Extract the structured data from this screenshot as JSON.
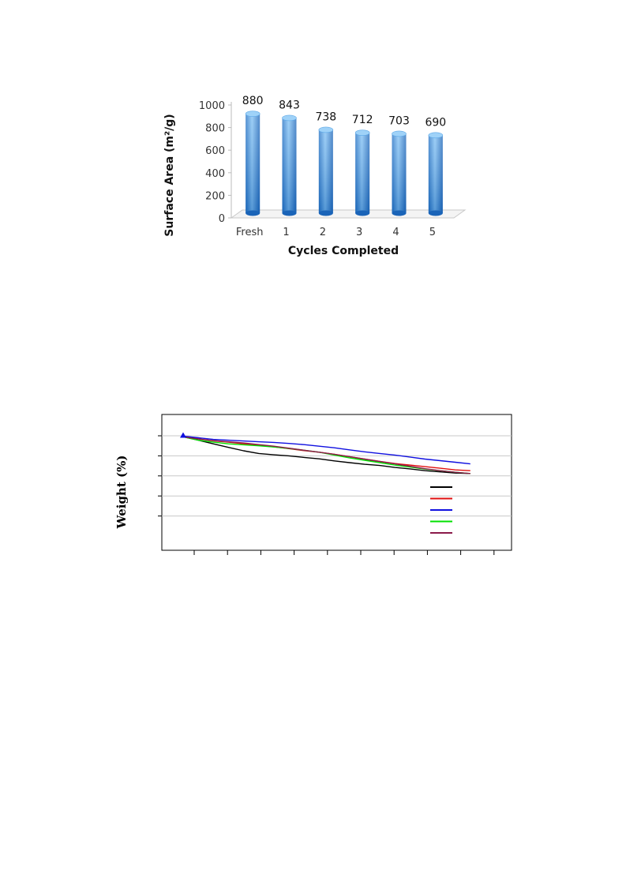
{
  "chart_data": [
    {
      "type": "bar",
      "categories": [
        "Fresh",
        "1",
        "2",
        "3",
        "4",
        "5"
      ],
      "values": [
        880,
        843,
        738,
        712,
        703,
        690
      ],
      "data_labels": [
        "880",
        "843",
        "738",
        "712",
        "703",
        "690"
      ],
      "yticks": [
        "0",
        "200",
        "400",
        "600",
        "800",
        "1000"
      ],
      "ylim": [
        0,
        1000
      ],
      "xlabel": "Cycles Completed",
      "ylabel": "Surface Area (m²/g)",
      "bar_color": "#3a8fd8",
      "legend": "none"
    },
    {
      "type": "line",
      "ylabel": "Weight (%)",
      "xlim": [
        0,
        10
      ],
      "ylim": [
        0,
        5
      ],
      "y_gridlines": [
        1,
        2,
        3,
        4,
        5
      ],
      "series": [
        {
          "color": "#000000",
          "x": [
            0,
            0.5,
            1,
            1.5,
            2,
            2.5,
            3,
            3.5,
            4,
            4.5,
            5,
            5.5,
            6,
            6.5,
            7,
            7.5,
            8,
            8.5,
            9,
            9.5
          ],
          "y": [
            4.95,
            4.78,
            4.6,
            4.42,
            4.25,
            4.12,
            4.05,
            4.0,
            3.92,
            3.85,
            3.75,
            3.66,
            3.58,
            3.52,
            3.42,
            3.35,
            3.26,
            3.2,
            3.14,
            3.12
          ]
        },
        {
          "color": "#e01010",
          "x": [
            0,
            0.5,
            1,
            1.5,
            2,
            2.5,
            3,
            3.5,
            4,
            4.5,
            5,
            5.5,
            6,
            6.5,
            7,
            7.5,
            8,
            8.5,
            9,
            9.5
          ],
          "y": [
            4.95,
            4.85,
            4.75,
            4.68,
            4.6,
            4.52,
            4.45,
            4.36,
            4.26,
            4.18,
            4.08,
            3.96,
            3.84,
            3.72,
            3.62,
            3.54,
            3.46,
            3.38,
            3.3,
            3.26
          ]
        },
        {
          "color": "#1010e0",
          "x": [
            0,
            0.5,
            1,
            1.5,
            2,
            2.5,
            3,
            3.5,
            4,
            4.5,
            5,
            5.5,
            6,
            6.5,
            7,
            7.5,
            8,
            8.5,
            9,
            9.5
          ],
          "y": [
            4.98,
            4.9,
            4.82,
            4.78,
            4.74,
            4.7,
            4.67,
            4.62,
            4.56,
            4.48,
            4.4,
            4.3,
            4.2,
            4.12,
            4.04,
            3.94,
            3.84,
            3.76,
            3.68,
            3.6
          ]
        },
        {
          "color": "#00e000",
          "x": [
            0,
            0.5,
            1,
            1.5,
            2,
            2.5,
            3,
            3.5,
            4,
            4.5,
            5,
            5.5,
            6,
            6.5,
            7,
            7.5,
            8,
            8.5,
            9,
            9.5
          ],
          "y": [
            4.95,
            4.78,
            4.68,
            4.6,
            4.55,
            4.5,
            4.44,
            4.37,
            4.28,
            4.18,
            4.04,
            3.9,
            3.78,
            3.66,
            3.54,
            3.44,
            3.34,
            3.26,
            3.18,
            3.12
          ]
        },
        {
          "color": "#8b1a4a",
          "x": [
            0,
            0.5,
            1,
            1.5,
            2,
            2.5,
            3,
            3.5,
            4,
            4.5,
            5,
            5.5,
            6,
            6.5,
            7,
            7.5,
            8,
            8.5,
            9,
            9.5
          ],
          "y": [
            4.95,
            4.84,
            4.76,
            4.7,
            4.64,
            4.56,
            4.48,
            4.38,
            4.28,
            4.18,
            4.08,
            3.96,
            3.84,
            3.72,
            3.6,
            3.48,
            3.36,
            3.26,
            3.18,
            3.12
          ]
        }
      ],
      "legend": "right"
    }
  ]
}
